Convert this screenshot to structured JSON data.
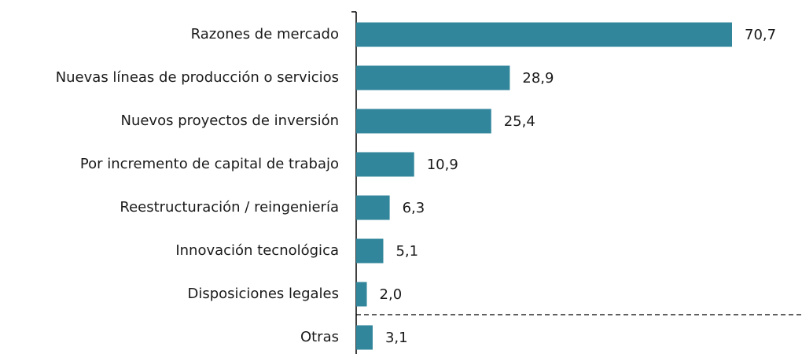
{
  "chart_data": {
    "type": "barh",
    "categories": [
      "Razones de mercado",
      "Nuevas líneas de producción o servicios",
      "Nuevos proyectos de inversión",
      "Por incremento de capital de trabajo",
      "Reestructuración / reingeniería",
      "Innovación tecnológica",
      "Disposiciones legales",
      "Otras"
    ],
    "values": [
      70.7,
      28.9,
      25.4,
      10.9,
      6.3,
      5.1,
      2.0,
      3.1
    ],
    "value_labels": [
      "70,7",
      "28,9",
      "25,4",
      "10,9",
      "6,3",
      "5,1",
      "2,0",
      "3,1"
    ],
    "color": "#31869b"
  }
}
